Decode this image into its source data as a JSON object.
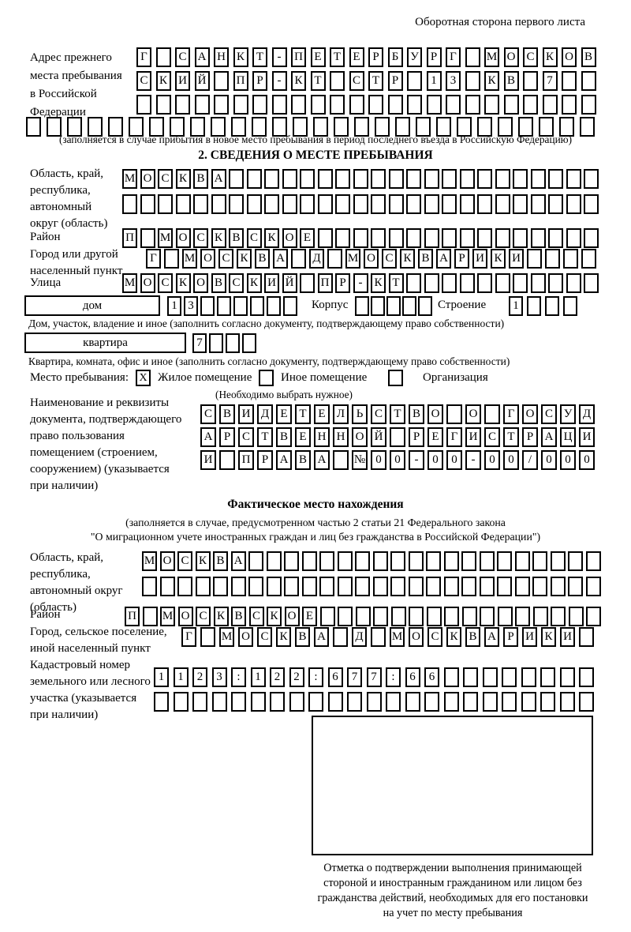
{
  "header_note": "Оборотная сторона первого листа",
  "prev_address": {
    "label": "Адрес прежнего\nместа пребывания\nв Российской\nФедерации",
    "row1": "Г САНКТ-ПЕТЕРБУРГ МОСКОВ",
    "row2": "СКИЙ ПР-КТ СТР 13 КВ 7  ",
    "row3": "                        ",
    "row4": "                            ",
    "caption": "(заполняется в случае прибытия в новое место пребывания в период последнего въезда в Российскую Федерацию)"
  },
  "section2": {
    "title": "2. СВЕДЕНИЯ О МЕСТЕ ПРЕБЫВАНИЯ",
    "oblast_label": "Область, край,\nреспублика,\nавтономный\nокруг (область)",
    "oblast_row1": "МОСКВА                     ",
    "oblast_row2": "                           ",
    "raion_label": "Район",
    "raion_row": "П МОСКВСКОЕ                ",
    "gorod_label": "Город или другой\nнаселенный пункт",
    "gorod_row": "Г МОСКВА Д МОСКВАРИКИ    ",
    "ulitsa_label": "Улица",
    "ulitsa_row": "МОСКОВСКИЙ ПР-КТ           ",
    "dom_label": "дом",
    "dom_cells": "13      ",
    "korpus_label": "Корпус",
    "korpus_cells": "     ",
    "stroenie_label": "Строение",
    "stroenie_cells": "1   ",
    "dom_caption": "Дом, участок, владение и иное (заполнить согласно документу, подтверждающему право собственности)",
    "kvartira_label": "квартира",
    "kvartira_cells": "7   ",
    "kvartira_caption": "Квартира, комната, офис и иное (заполнить согласно документу, подтверждающему право собственности)",
    "mesto_label": "Место пребывания:",
    "checkbox_zhiloe": {
      "value": "X",
      "label": "Жилое помещение"
    },
    "checkbox_inoe": {
      "value": "",
      "label": "Иное помещение"
    },
    "checkbox_org": {
      "value": "",
      "label": "Организация"
    },
    "choose_caption": "(Необходимо выбрать нужное)",
    "doc_label": "Наименование и реквизиты\nдокумента, подтверждающего\nправо пользования\nпомещением (строением,\nсооружением) (указывается\nпри наличии)",
    "doc_row1": "СВИДЕТЕЛЬСТВО О ГОСУД",
    "doc_row2": "АРСТВЕННОЙ РЕГИСТРАЦИ",
    "doc_row3": "И ПРАВА №00-00-00/000"
  },
  "fact": {
    "title": "Фактическое место нахождения",
    "caption_line1": "(заполняется в случае, предусмотренном частью 2 статьи 21 Федерального закона",
    "caption_line2": "\"О миграционном учете иностранных граждан и лиц без гражданства в Российской Федерации\")",
    "oblast_label": "Область, край,\nреспублика,\nавтономный округ\n(область)",
    "oblast_row1": "МОСКВА                    ",
    "oblast_row2": "                          ",
    "raion_label": "Район",
    "raion_row": "П МОСКВСКОЕ                ",
    "gorod_label": "Город, сельское поселение,\nиной населенный пункт",
    "gorod_row": "Г МОСКВА Д МОСКВАРИКИ ",
    "kadastr_label": "Кадастровый номер\nземельного или лесного\nучастка (указывается\nпри наличии)",
    "kadastr_row1": "1123:122:677:66        ",
    "kadastr_row2": "                       ",
    "stamp_caption": "Отметка о подтверждении выполнения принимающей\nстороной и иностранным гражданином или лицом без\nгражданства действий, необходимых для его постановки\nна учет по месту пребывания"
  }
}
